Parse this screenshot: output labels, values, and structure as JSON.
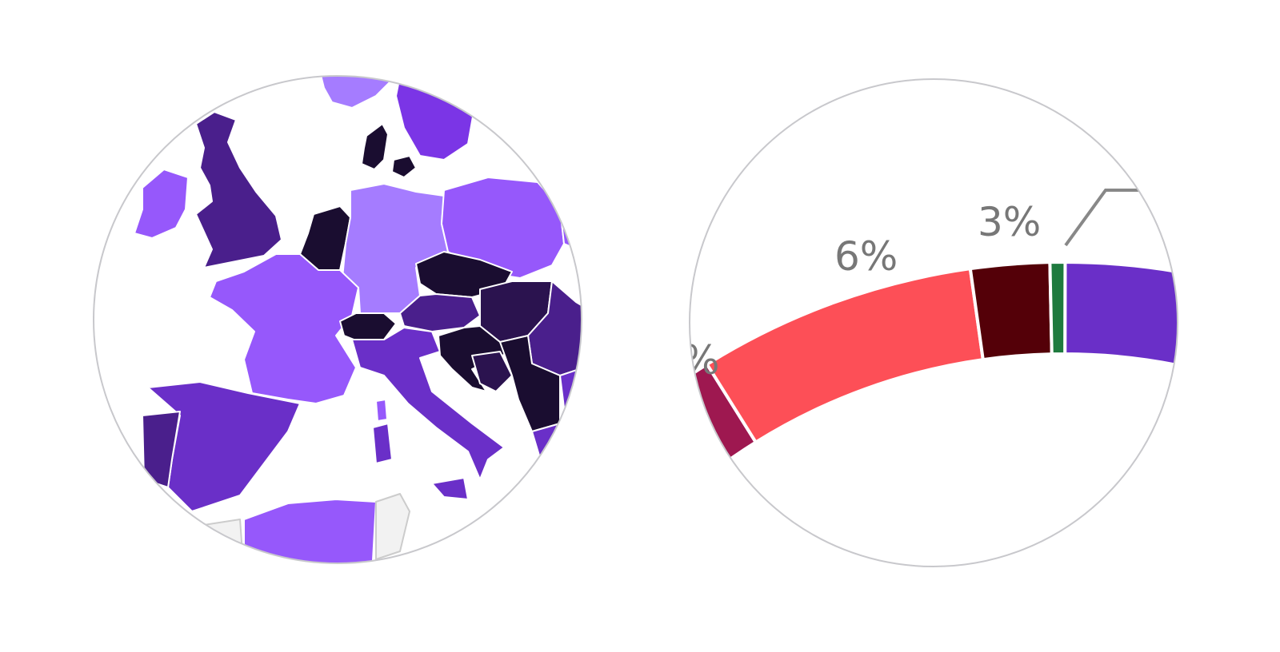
{
  "map": {
    "land_colors": {
      "lightest": "#a57cff",
      "light": "#9658fb",
      "mid": "#6a2fc8",
      "dark": "#4a1f8c",
      "darker": "#2b134f",
      "darkest": "#1a0d30",
      "non_eu": "#f2f2f2",
      "border": "#ffffff"
    }
  },
  "donut": {
    "labels": {
      "partial": "%",
      "six": "6%",
      "three": "3%"
    },
    "segments": [
      {
        "color": "#9e1850"
      },
      {
        "color": "#fd4f57"
      },
      {
        "color": "#540008"
      },
      {
        "color": "#1e7a3e"
      },
      {
        "color": "#6a2fc8"
      }
    ],
    "leader_color": "#888888"
  }
}
